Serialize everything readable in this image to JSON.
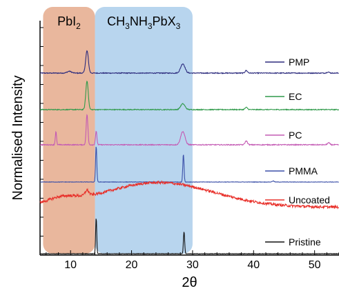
{
  "chart_data": {
    "type": "line",
    "xlabel": "2θ",
    "ylabel": "Normalised Intensity",
    "xlim": [
      5,
      54
    ],
    "xticks": [
      10,
      20,
      30,
      40,
      50
    ],
    "regions": [
      {
        "label_main": "PbI",
        "label_sub": "2",
        "x_start": 5.5,
        "x_end": 14.0,
        "color": "#e9b79d"
      },
      {
        "label_parts": [
          [
            "CH",
            ""
          ],
          [
            "3",
            "sub"
          ],
          [
            "NH",
            ""
          ],
          [
            "3",
            "sub"
          ],
          [
            "PbX",
            ""
          ],
          [
            "3",
            "sub"
          ]
        ],
        "x_start": 14.0,
        "x_end": 30.0,
        "color": "#b8d5ee"
      }
    ],
    "series": [
      {
        "name": "PMP",
        "color": "#2b2a7d",
        "baseline": 0.0,
        "noise": 0.012,
        "broad": [],
        "peaks": [
          [
            9.8,
            0.05,
            0.35
          ],
          [
            12.7,
            0.62,
            0.22
          ],
          [
            28.4,
            0.26,
            0.35
          ],
          [
            38.8,
            0.07,
            0.2
          ],
          [
            52.2,
            0.03,
            0.2
          ]
        ]
      },
      {
        "name": "EC",
        "color": "#2f9a4a",
        "baseline": 0.0,
        "noise": 0.012,
        "broad": [],
        "peaks": [
          [
            12.7,
            0.78,
            0.2
          ],
          [
            28.4,
            0.16,
            0.35
          ],
          [
            38.8,
            0.06,
            0.2
          ]
        ]
      },
      {
        "name": "PC",
        "color": "#c45ab4",
        "baseline": 0.0,
        "noise": 0.012,
        "broad": [],
        "peaks": [
          [
            7.6,
            0.35,
            0.1
          ],
          [
            12.7,
            0.8,
            0.14
          ],
          [
            14.2,
            0.35,
            0.12
          ],
          [
            28.4,
            0.35,
            0.35
          ],
          [
            38.8,
            0.1,
            0.2
          ],
          [
            52.3,
            0.05,
            0.2
          ]
        ]
      },
      {
        "name": "PMMA",
        "color": "#3a4fa8",
        "baseline": 0.0,
        "noise": 0.006,
        "broad": [],
        "peaks": [
          [
            14.2,
            1.0,
            0.1
          ],
          [
            28.5,
            0.78,
            0.1
          ],
          [
            43.2,
            0.03,
            0.15
          ]
        ]
      },
      {
        "name": "Uncoated",
        "color": "#e8302a",
        "baseline": 0.25,
        "noise": 0.045,
        "broad": [
          [
            24.5,
            0.85,
            9.0
          ],
          [
            8.5,
            0.2,
            2.5
          ]
        ],
        "peaks": [
          [
            12.7,
            0.18,
            0.3
          ]
        ]
      },
      {
        "name": "Pristine",
        "color": "#111111",
        "baseline": 0.0,
        "noise": 0.006,
        "broad": [],
        "peaks": [
          [
            14.2,
            1.0,
            0.09
          ],
          [
            28.6,
            0.62,
            0.1
          ]
        ]
      }
    ]
  }
}
